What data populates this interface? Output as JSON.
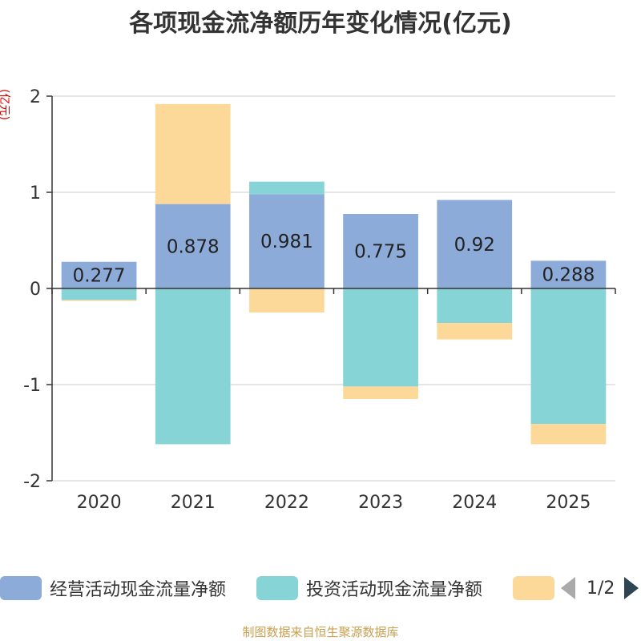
{
  "chart_data": {
    "type": "bar",
    "stacked": true,
    "title": "各项现金流净额历年变化情况(亿元)",
    "ylabel": "(亿元)",
    "ylim": [
      -2,
      2
    ],
    "yticks": [
      2,
      1,
      0,
      -1,
      -2
    ],
    "categories": [
      "2020",
      "2021",
      "2022",
      "2023",
      "2024",
      "2025"
    ],
    "series": [
      {
        "name": "经营活动现金流量净额",
        "color": "#8dabd8",
        "values": [
          0.277,
          0.878,
          0.981,
          0.775,
          0.92,
          0.288
        ],
        "labels": [
          "0.277",
          "0.878",
          "0.981",
          "0.775",
          "0.92",
          "0.288"
        ]
      },
      {
        "name": "投资活动现金流量净额",
        "color": "#87d4d6",
        "values": [
          -0.12,
          -1.62,
          0.13,
          -1.02,
          -0.36,
          -1.41
        ]
      },
      {
        "name": "",
        "color": "#fdd999",
        "values": [
          -0.01,
          1.04,
          -0.25,
          -0.13,
          -0.17,
          -0.21
        ]
      }
    ],
    "legend_position": "bottom"
  },
  "legend": {
    "page": "1/2"
  },
  "source": "制图数据来自恒生聚源数据库"
}
